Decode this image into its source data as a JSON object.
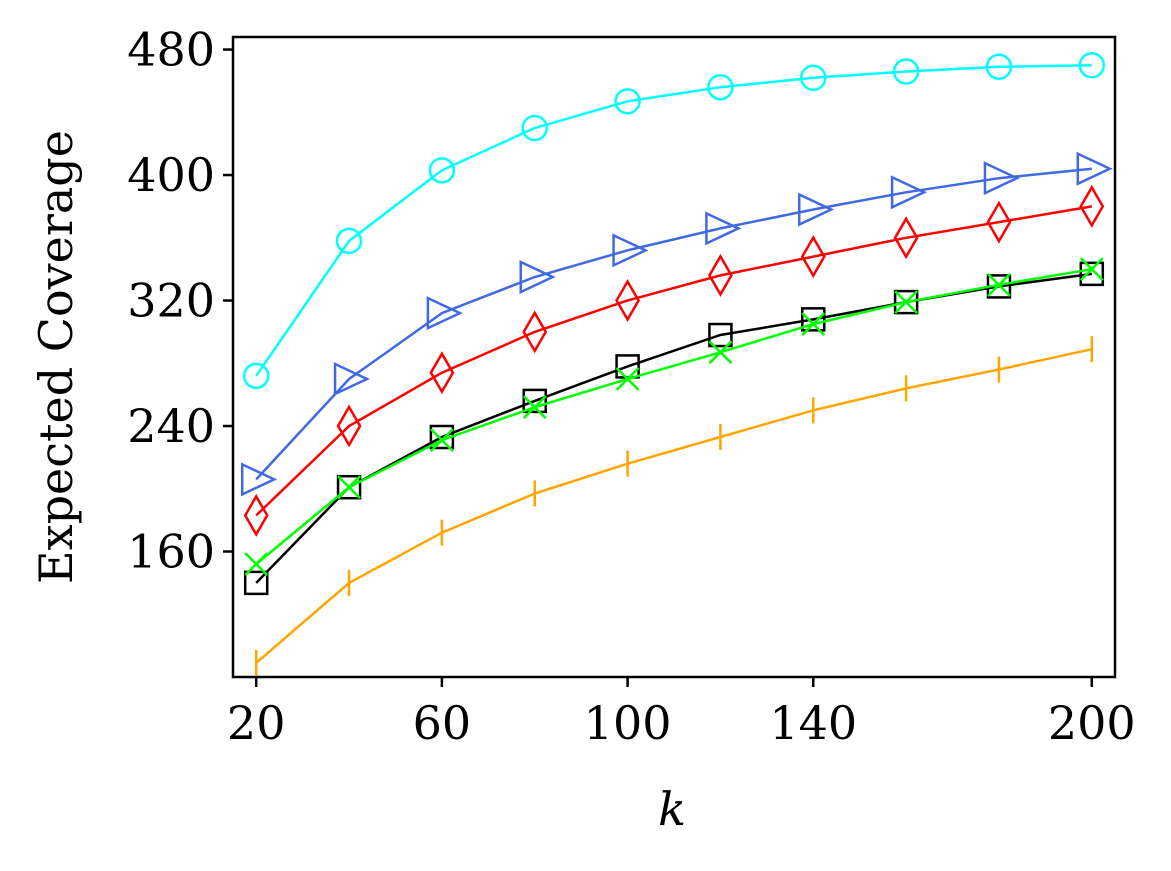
{
  "chart_data": {
    "type": "line",
    "title": "",
    "xlabel": "k",
    "ylabel": "Expected Coverage",
    "xlim": [
      15,
      205
    ],
    "ylim": [
      80,
      488
    ],
    "xticks": [
      20,
      60,
      100,
      140,
      200
    ],
    "xtick_labels": [
      "20",
      "60",
      "100",
      "140",
      "200"
    ],
    "yticks": [
      160,
      240,
      320,
      400,
      480
    ],
    "ytick_labels": [
      "160",
      "240",
      "320",
      "400",
      "480"
    ],
    "grid": false,
    "legend": "none",
    "x": [
      20,
      40,
      60,
      80,
      100,
      120,
      140,
      160,
      180,
      200
    ],
    "series": [
      {
        "name": "cyan-circle",
        "color": "#00FFFF",
        "marker": "circle",
        "values": [
          272,
          358,
          403,
          430,
          447,
          456,
          462,
          466,
          469,
          470
        ]
      },
      {
        "name": "blue-triangle",
        "color": "#4169E1",
        "marker": "triangle-right",
        "values": [
          206,
          270,
          312,
          335,
          352,
          366,
          378,
          389,
          398,
          404
        ]
      },
      {
        "name": "red-diamond",
        "color": "#FF0000",
        "marker": "diamond",
        "values": [
          183,
          240,
          274,
          300,
          320,
          336,
          348,
          360,
          370,
          380
        ]
      },
      {
        "name": "black-square",
        "color": "#000000",
        "marker": "square",
        "values": [
          140,
          201,
          233,
          256,
          278,
          298,
          308,
          319,
          329,
          337
        ]
      },
      {
        "name": "green-x",
        "color": "#00FF00",
        "marker": "x",
        "values": [
          152,
          201,
          231,
          252,
          270,
          287,
          305,
          319,
          330,
          340
        ]
      },
      {
        "name": "orange-vline",
        "color": "#FFA500",
        "marker": "vline",
        "values": [
          89,
          140,
          172,
          197,
          216,
          233,
          250,
          264,
          276,
          289
        ]
      }
    ]
  }
}
